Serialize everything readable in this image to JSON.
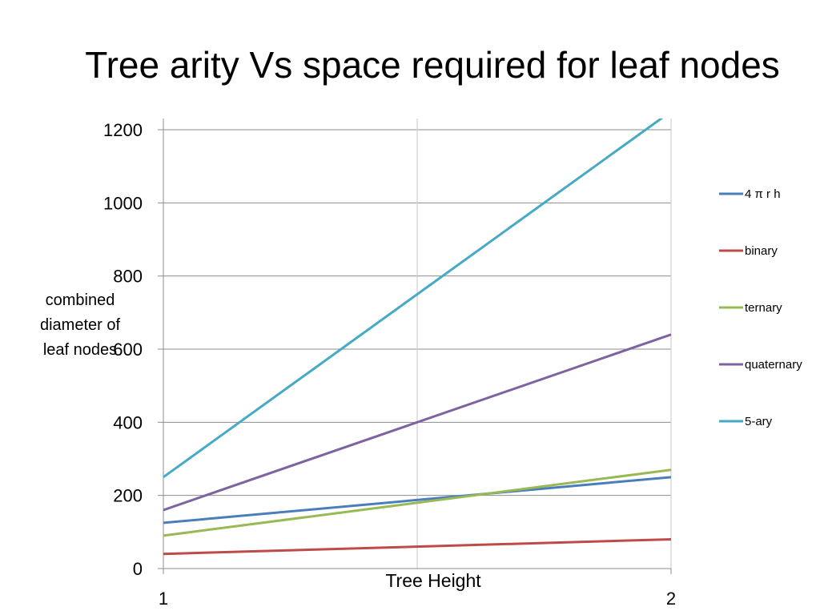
{
  "slide": {
    "title": "Tree arity Vs space required for leaf nodes"
  },
  "colors": {
    "grid": "#8c8c8c",
    "axis": "#8c8c8c"
  },
  "chart_data": {
    "type": "line",
    "title": "",
    "xlabel": "Tree Height",
    "ylabel": "combined diameter of leaf nodes",
    "x": [
      1,
      2
    ],
    "categories": [
      "1",
      "2"
    ],
    "ylim": [
      0,
      1200
    ],
    "yticks": [
      0,
      200,
      400,
      600,
      800,
      1000,
      1200
    ],
    "grid": true,
    "legend_position": "right",
    "series": [
      {
        "name": "4 π r h",
        "color": "#4a7ebb",
        "values": [
          125,
          250
        ]
      },
      {
        "name": "binary",
        "color": "#be4b48",
        "values": [
          40,
          80
        ]
      },
      {
        "name": "ternary",
        "color": "#98b954",
        "values": [
          90,
          270
        ]
      },
      {
        "name": "quaternary",
        "color": "#7e63a0",
        "values": [
          160,
          640
        ]
      },
      {
        "name": "5-ary",
        "color": "#46aac5",
        "values": [
          250,
          1250
        ]
      }
    ]
  }
}
